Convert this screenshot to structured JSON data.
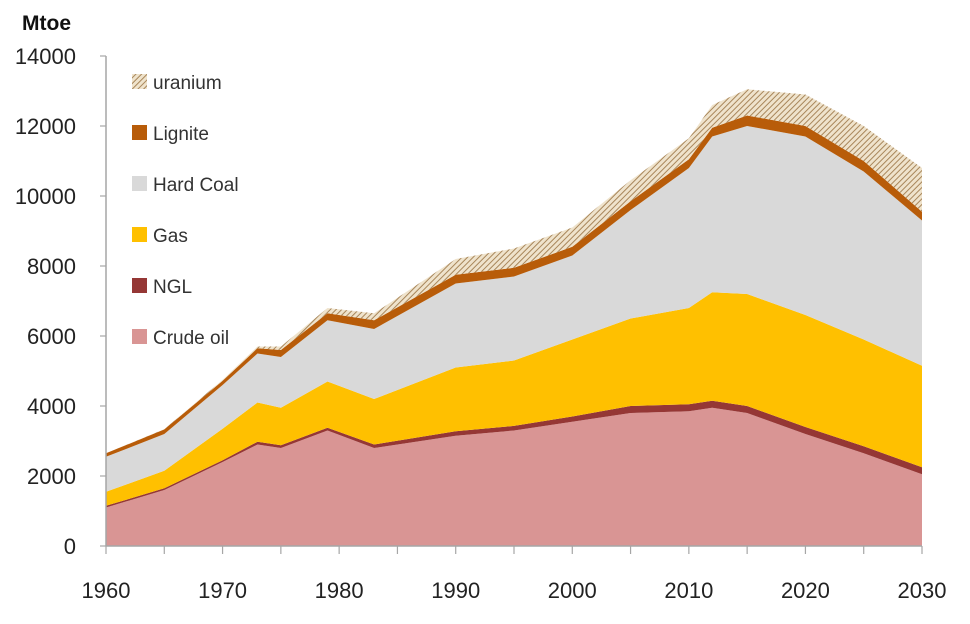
{
  "chart_data": {
    "type": "area",
    "stacked": true,
    "title": "",
    "ylabel": "Mtoe",
    "xlabel": "",
    "ylim": [
      0,
      14000
    ],
    "xlim": [
      1960,
      2030
    ],
    "yticks": [
      0,
      2000,
      4000,
      6000,
      8000,
      10000,
      12000,
      14000
    ],
    "xticks": [
      1960,
      1970,
      1980,
      1990,
      2000,
      2010,
      2020,
      2030
    ],
    "grid": false,
    "legend_position": "top-left",
    "x": [
      1960,
      1965,
      1970,
      1973,
      1975,
      1979,
      1983,
      1990,
      1995,
      2000,
      2005,
      2010,
      2012,
      2015,
      2020,
      2025,
      2030
    ],
    "series": [
      {
        "name": "Crude oil",
        "color": "#d99594",
        "pattern": "solid",
        "values": [
          1100,
          1600,
          2400,
          2900,
          2800,
          3300,
          2800,
          3150,
          3300,
          3550,
          3800,
          3850,
          3950,
          3800,
          3200,
          2650,
          2050
        ]
      },
      {
        "name": "NGL",
        "color": "#953735",
        "pattern": "solid",
        "values": [
          50,
          50,
          50,
          80,
          80,
          80,
          100,
          130,
          130,
          150,
          200,
          200,
          200,
          200,
          200,
          200,
          200
        ]
      },
      {
        "name": "Gas",
        "color": "#ffc000",
        "pattern": "solid",
        "values": [
          400,
          500,
          900,
          1120,
          1070,
          1320,
          1300,
          1820,
          1870,
          2200,
          2500,
          2750,
          3100,
          3200,
          3200,
          3050,
          2900
        ]
      },
      {
        "name": "Hard Coal",
        "color": "#d9d9d9",
        "pattern": "solid",
        "values": [
          1000,
          1050,
          1250,
          1400,
          1450,
          1750,
          2000,
          2400,
          2400,
          2400,
          3100,
          4000,
          4450,
          4800,
          5100,
          4800,
          4150
        ]
      },
      {
        "name": "Lignite",
        "color": "#b85c09",
        "pattern": "solid",
        "values": [
          100,
          130,
          120,
          150,
          200,
          200,
          250,
          250,
          250,
          250,
          250,
          250,
          250,
          300,
          300,
          300,
          250
        ]
      },
      {
        "name": "uranium",
        "color": "#c8a97a",
        "pattern": "hatched",
        "values": [
          0,
          10,
          30,
          50,
          100,
          150,
          200,
          450,
          550,
          550,
          600,
          600,
          650,
          750,
          900,
          1000,
          1250
        ]
      }
    ],
    "legend": [
      "uranium",
      "Lignite",
      "Hard Coal",
      "Gas",
      "NGL",
      "Crude oil"
    ]
  }
}
